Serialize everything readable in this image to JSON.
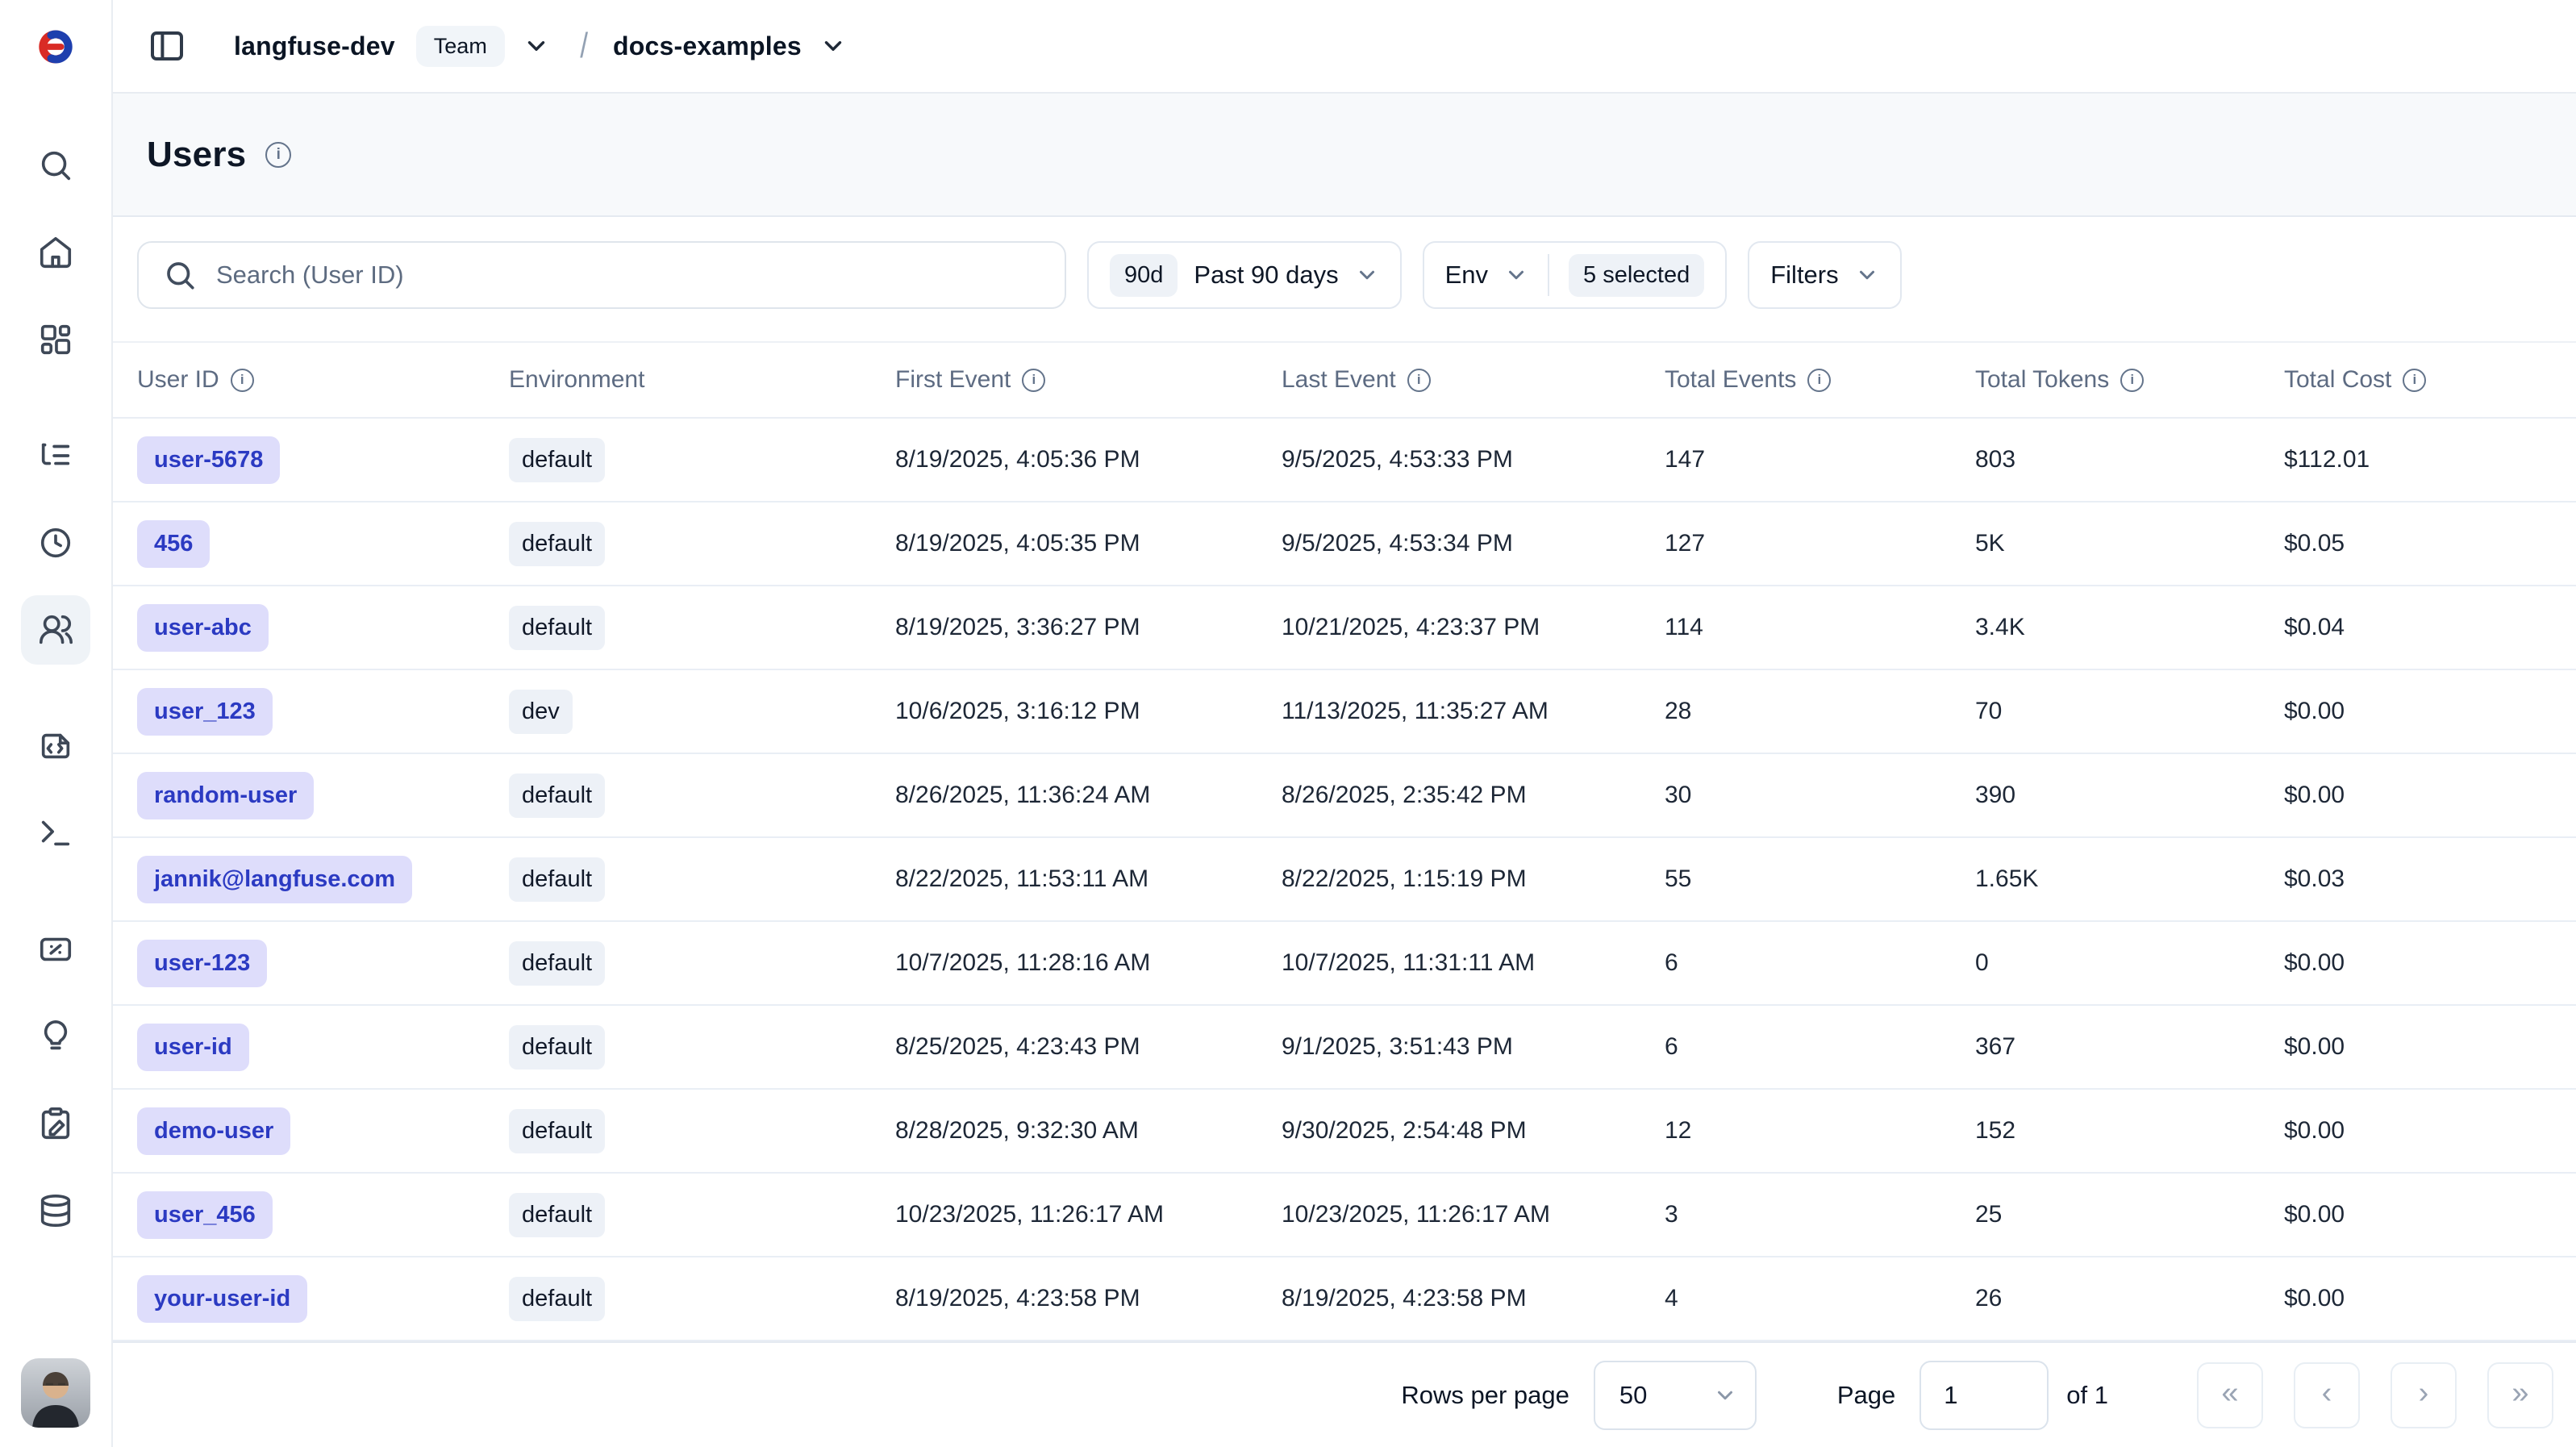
{
  "header": {
    "workspace": "langfuse-dev",
    "workspace_badge": "Team",
    "project": "docs-examples",
    "breadcrumb_separator": "/"
  },
  "page": {
    "title": "Users"
  },
  "sidebar": {
    "active_item": "users",
    "items": [
      {
        "name": "search",
        "icon": "search-icon"
      },
      {
        "name": "home",
        "icon": "home-icon"
      },
      {
        "name": "dashboards",
        "icon": "dashboard-grid-icon"
      },
      {
        "name": "tracing",
        "icon": "list-tree-icon"
      },
      {
        "name": "sessions",
        "icon": "clock-icon"
      },
      {
        "name": "users",
        "icon": "users-icon"
      },
      {
        "name": "prompts",
        "icon": "file-code-icon"
      },
      {
        "name": "playground",
        "icon": "terminal-icon"
      },
      {
        "name": "evaluation",
        "icon": "score-card-icon"
      },
      {
        "name": "insights",
        "icon": "lightbulb-icon"
      },
      {
        "name": "annotation",
        "icon": "clipboard-pen-icon"
      },
      {
        "name": "datasets",
        "icon": "database-icon"
      }
    ]
  },
  "toolbar": {
    "search_placeholder": "Search (User ID)",
    "date_range": {
      "badge": "90d",
      "label": "Past 90 days"
    },
    "env_filter": {
      "label": "Env",
      "selected": "5 selected"
    },
    "filters_label": "Filters"
  },
  "table": {
    "columns": [
      {
        "label": "User ID",
        "info": true
      },
      {
        "label": "Environment",
        "info": false
      },
      {
        "label": "First Event",
        "info": true
      },
      {
        "label": "Last Event",
        "info": true
      },
      {
        "label": "Total Events",
        "info": true
      },
      {
        "label": "Total Tokens",
        "info": true
      },
      {
        "label": "Total Cost",
        "info": true
      }
    ],
    "rows": [
      {
        "user_id": "user-5678",
        "environment": "default",
        "first_event": "8/19/2025, 4:05:36 PM",
        "last_event": "9/5/2025, 4:53:33 PM",
        "total_events": "147",
        "total_tokens": "803",
        "total_cost": "$112.01"
      },
      {
        "user_id": "456",
        "environment": "default",
        "first_event": "8/19/2025, 4:05:35 PM",
        "last_event": "9/5/2025, 4:53:34 PM",
        "total_events": "127",
        "total_tokens": "5K",
        "total_cost": "$0.05"
      },
      {
        "user_id": "user-abc",
        "environment": "default",
        "first_event": "8/19/2025, 3:36:27 PM",
        "last_event": "10/21/2025, 4:23:37 PM",
        "total_events": "114",
        "total_tokens": "3.4K",
        "total_cost": "$0.04"
      },
      {
        "user_id": "user_123",
        "environment": "dev",
        "first_event": "10/6/2025, 3:16:12 PM",
        "last_event": "11/13/2025, 11:35:27 AM",
        "total_events": "28",
        "total_tokens": "70",
        "total_cost": "$0.00"
      },
      {
        "user_id": "random-user",
        "environment": "default",
        "first_event": "8/26/2025, 11:36:24 AM",
        "last_event": "8/26/2025, 2:35:42 PM",
        "total_events": "30",
        "total_tokens": "390",
        "total_cost": "$0.00"
      },
      {
        "user_id": "jannik@langfuse.com",
        "environment": "default",
        "first_event": "8/22/2025, 11:53:11 AM",
        "last_event": "8/22/2025, 1:15:19 PM",
        "total_events": "55",
        "total_tokens": "1.65K",
        "total_cost": "$0.03"
      },
      {
        "user_id": "user-123",
        "environment": "default",
        "first_event": "10/7/2025, 11:28:16 AM",
        "last_event": "10/7/2025, 11:31:11 AM",
        "total_events": "6",
        "total_tokens": "0",
        "total_cost": "$0.00"
      },
      {
        "user_id": "user-id",
        "environment": "default",
        "first_event": "8/25/2025, 4:23:43 PM",
        "last_event": "9/1/2025, 3:51:43 PM",
        "total_events": "6",
        "total_tokens": "367",
        "total_cost": "$0.00"
      },
      {
        "user_id": "demo-user",
        "environment": "default",
        "first_event": "8/28/2025, 9:32:30 AM",
        "last_event": "9/30/2025, 2:54:48 PM",
        "total_events": "12",
        "total_tokens": "152",
        "total_cost": "$0.00"
      },
      {
        "user_id": "user_456",
        "environment": "default",
        "first_event": "10/23/2025, 11:26:17 AM",
        "last_event": "10/23/2025, 11:26:17 AM",
        "total_events": "3",
        "total_tokens": "25",
        "total_cost": "$0.00"
      },
      {
        "user_id": "your-user-id",
        "environment": "default",
        "first_event": "8/19/2025, 4:23:58 PM",
        "last_event": "8/19/2025, 4:23:58 PM",
        "total_events": "4",
        "total_tokens": "26",
        "total_cost": "$0.00"
      }
    ]
  },
  "pagination": {
    "rows_per_page_label": "Rows per page",
    "rows_per_page_value": "50",
    "page_label": "Page",
    "page_value": "1",
    "of_label": "of 1",
    "first_icon": "«",
    "prev_icon": "‹",
    "next_icon": "›",
    "last_icon": "»"
  },
  "colors": {
    "accent_badge_bg": "#deddfb",
    "accent_badge_text": "#2b3ac2",
    "env_badge_bg": "#edf1f7",
    "chip_bg": "#eef2f7",
    "title_band_bg": "#f7f9fb",
    "muted_text": "#5d6b82",
    "border": "#e7ecf2",
    "logo_red": "#d92b25",
    "logo_blue": "#1e3fae"
  }
}
